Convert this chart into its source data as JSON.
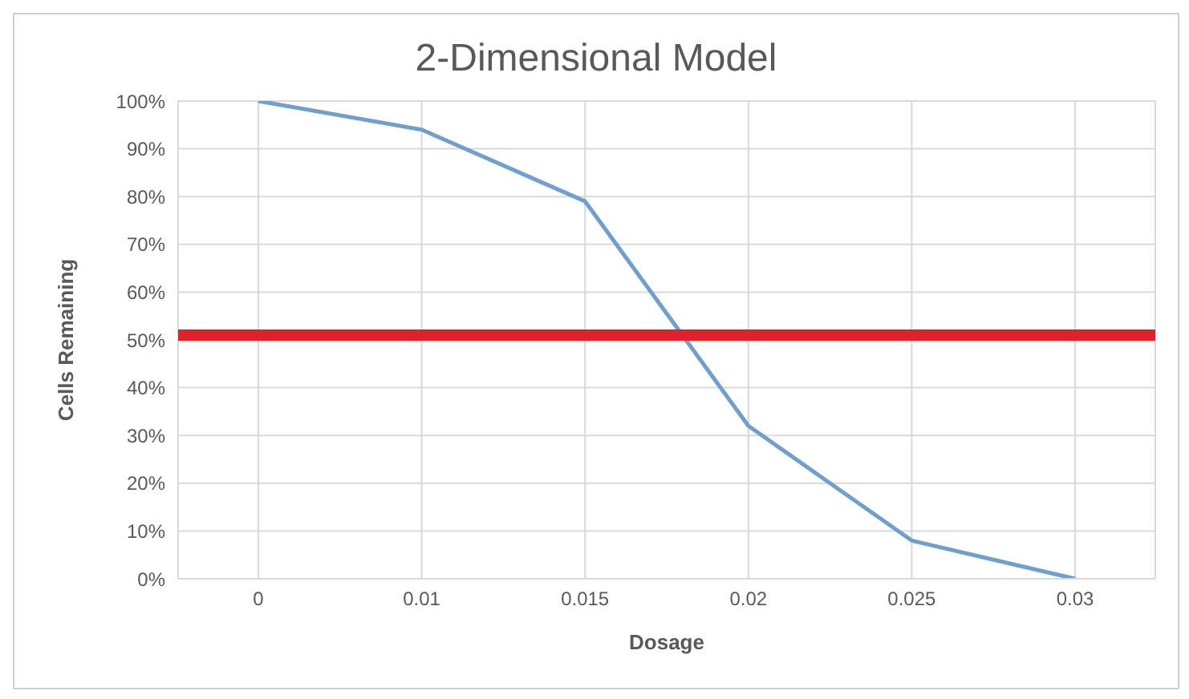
{
  "chart_data": {
    "type": "line",
    "title": "2-Dimensional Model",
    "xlabel": "Dosage",
    "ylabel": "Cells Remaining",
    "categories": [
      "0",
      "0.01",
      "0.015",
      "0.02",
      "0.025",
      "0.03"
    ],
    "series": [
      {
        "color": "#6f9fcf",
        "values": [
          100,
          94,
          79,
          32,
          8,
          0
        ]
      }
    ],
    "ylim": [
      0,
      100
    ],
    "yticks": [
      {
        "value": 0,
        "label": "0%"
      },
      {
        "value": 10,
        "label": "10%"
      },
      {
        "value": 20,
        "label": "20%"
      },
      {
        "value": 30,
        "label": "30%"
      },
      {
        "value": 40,
        "label": "40%"
      },
      {
        "value": 50,
        "label": "50%"
      },
      {
        "value": 60,
        "label": "60%"
      },
      {
        "value": 70,
        "label": "70%"
      },
      {
        "value": 80,
        "label": "80%"
      },
      {
        "value": 90,
        "label": "90%"
      },
      {
        "value": 100,
        "label": "100%"
      }
    ],
    "ref_lines": [
      {
        "axis": "y",
        "value": 51,
        "color": "#e0202a"
      }
    ],
    "grid": true,
    "legend": false,
    "marker": "none",
    "line_style": "solid"
  }
}
